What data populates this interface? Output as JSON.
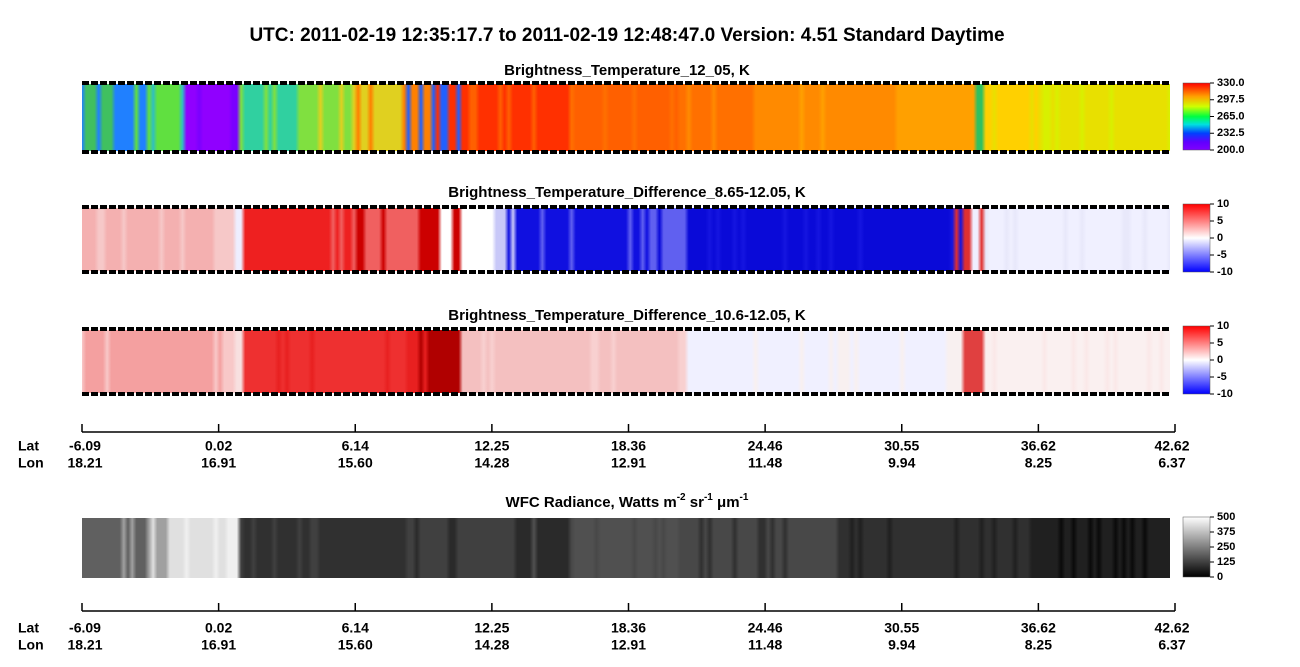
{
  "header": {
    "title": "UTC:  2011-02-19   12:35:17.7  to  2011-02-19   12:48:47.0    Version: 4.51  Standard Daytime"
  },
  "panels": [
    {
      "title": [
        "Brightness_Temperature_12_05, K"
      ],
      "colorbar": [
        "330.0",
        "297.5",
        "265.0",
        "232.5",
        "200.0"
      ]
    },
    {
      "title": [
        "Brightness_Temperature_Difference_8.65-12.05, K"
      ],
      "colorbar": [
        "10",
        "5",
        "0",
        "-5",
        "-10"
      ]
    },
    {
      "title": [
        "Brightness_Temperature_Difference_10.6-12.05, K"
      ],
      "colorbar": [
        "10",
        "5",
        "0",
        "-5",
        "-10"
      ]
    },
    {
      "title": [
        "WFC Radiance, Watts m",
        "-2",
        " sr",
        "-1",
        " μm",
        "-1"
      ],
      "colorbar": [
        "500",
        "375",
        "250",
        "125",
        "0"
      ]
    }
  ],
  "axes": [
    {
      "lat_name": "Lat",
      "lon_name": "Lon",
      "lat": [
        "-6.09",
        "0.02",
        "6.14",
        "12.25",
        "18.36",
        "24.46",
        "30.55",
        "36.62",
        "42.62"
      ],
      "lon": [
        "18.21",
        "16.91",
        "15.60",
        "14.28",
        "12.91",
        "11.48",
        "9.94",
        "8.25",
        "6.37"
      ]
    },
    {
      "lat_name": "Lat",
      "lon_name": "Lon",
      "lat": [
        "-6.09",
        "0.02",
        "6.14",
        "12.25",
        "18.36",
        "24.46",
        "30.55",
        "36.62",
        "42.62"
      ],
      "lon": [
        "18.21",
        "16.91",
        "15.60",
        "14.28",
        "12.91",
        "11.48",
        "9.94",
        "8.25",
        "6.37"
      ]
    }
  ]
}
